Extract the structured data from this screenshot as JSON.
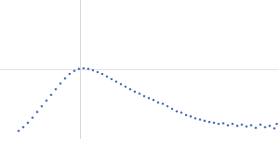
{
  "chart_data": {
    "type": "scatter",
    "x": [
      0.4,
      0.5,
      0.6,
      0.7,
      0.8,
      0.9,
      1.0,
      1.1,
      1.2,
      1.3,
      1.4,
      1.5,
      1.6,
      1.7,
      1.8,
      1.9,
      2.0,
      2.1,
      2.2,
      2.3,
      2.4,
      2.5,
      2.6,
      2.7,
      2.8,
      2.9,
      3.0,
      3.1,
      3.2,
      3.3,
      3.4,
      3.5,
      3.6,
      3.7,
      3.8,
      3.9,
      4.0,
      4.1,
      4.2,
      4.3,
      4.4,
      4.5,
      4.6,
      4.7,
      4.8,
      4.9,
      5.0,
      5.1,
      5.2,
      5.3,
      5.4,
      5.5,
      5.6,
      5.7,
      5.8,
      5.9,
      5.95
    ],
    "values": [
      0.13,
      0.19,
      0.26,
      0.34,
      0.43,
      0.52,
      0.61,
      0.7,
      0.79,
      0.88,
      0.96,
      1.03,
      1.08,
      1.11,
      1.12,
      1.11,
      1.09,
      1.06,
      1.03,
      0.99,
      0.95,
      0.91,
      0.87,
      0.83,
      0.79,
      0.75,
      0.72,
      0.68,
      0.65,
      0.62,
      0.58,
      0.56,
      0.52,
      0.48,
      0.44,
      0.42,
      0.38,
      0.36,
      0.33,
      0.31,
      0.29,
      0.27,
      0.26,
      0.24,
      0.25,
      0.22,
      0.24,
      0.21,
      0.23,
      0.2,
      0.22,
      0.18,
      0.23,
      0.19,
      0.21,
      0.17,
      0.24
    ],
    "color": "#3a66b0",
    "xlim": [
      0,
      6
    ],
    "ylim": [
      0,
      2.2
    ],
    "reference_lines": {
      "x": 1.732,
      "y": 1.104
    }
  }
}
